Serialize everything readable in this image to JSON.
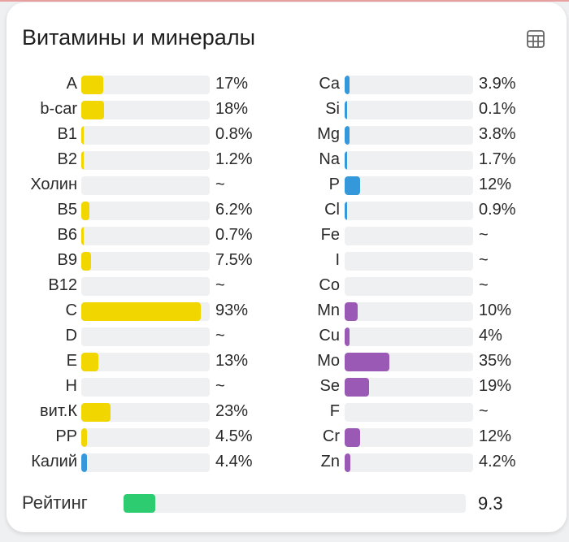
{
  "title": "Витамины и минералы",
  "icon": "table-icon",
  "colors": {
    "vitamin": "#f2d600",
    "mineral_blue": "#3498db",
    "mineral_purple": "#9b59b6",
    "rating": "#2ecc71",
    "track": "#eff0f2"
  },
  "left": [
    {
      "label": "A",
      "value": "17%",
      "pct": 17,
      "color": "#f2d600"
    },
    {
      "label": "b-car",
      "value": "18%",
      "pct": 18,
      "color": "#f2d600"
    },
    {
      "label": "B1",
      "value": "0.8%",
      "pct": 0.8,
      "color": "#f2d600"
    },
    {
      "label": "B2",
      "value": "1.2%",
      "pct": 1.2,
      "color": "#f2d600"
    },
    {
      "label": "Холин",
      "value": "~",
      "pct": 0,
      "color": "#f2d600"
    },
    {
      "label": "B5",
      "value": "6.2%",
      "pct": 6.2,
      "color": "#f2d600"
    },
    {
      "label": "B6",
      "value": "0.7%",
      "pct": 0.7,
      "color": "#f2d600"
    },
    {
      "label": "B9",
      "value": "7.5%",
      "pct": 7.5,
      "color": "#f2d600"
    },
    {
      "label": "B12",
      "value": "~",
      "pct": 0,
      "color": "#f2d600"
    },
    {
      "label": "C",
      "value": "93%",
      "pct": 93,
      "color": "#f2d600"
    },
    {
      "label": "D",
      "value": "~",
      "pct": 0,
      "color": "#f2d600"
    },
    {
      "label": "E",
      "value": "13%",
      "pct": 13,
      "color": "#f2d600"
    },
    {
      "label": "H",
      "value": "~",
      "pct": 0,
      "color": "#f2d600"
    },
    {
      "label": "вит.К",
      "value": "23%",
      "pct": 23,
      "color": "#f2d600"
    },
    {
      "label": "PP",
      "value": "4.5%",
      "pct": 4.5,
      "color": "#f2d600"
    },
    {
      "label": "Калий",
      "value": "4.4%",
      "pct": 4.4,
      "color": "#3498db"
    }
  ],
  "right": [
    {
      "label": "Ca",
      "value": "3.9%",
      "pct": 3.9,
      "color": "#3498db"
    },
    {
      "label": "Si",
      "value": "0.1%",
      "pct": 0.1,
      "color": "#3498db"
    },
    {
      "label": "Mg",
      "value": "3.8%",
      "pct": 3.8,
      "color": "#3498db"
    },
    {
      "label": "Na",
      "value": "1.7%",
      "pct": 1.7,
      "color": "#3498db"
    },
    {
      "label": "P",
      "value": "12%",
      "pct": 12,
      "color": "#3498db"
    },
    {
      "label": "Cl",
      "value": "0.9%",
      "pct": 0.9,
      "color": "#3498db"
    },
    {
      "label": "Fe",
      "value": "~",
      "pct": 0,
      "color": "#9b59b6"
    },
    {
      "label": "I",
      "value": "~",
      "pct": 0,
      "color": "#9b59b6"
    },
    {
      "label": "Co",
      "value": "~",
      "pct": 0,
      "color": "#9b59b6"
    },
    {
      "label": "Mn",
      "value": "10%",
      "pct": 10,
      "color": "#9b59b6"
    },
    {
      "label": "Cu",
      "value": "4%",
      "pct": 4,
      "color": "#9b59b6"
    },
    {
      "label": "Mo",
      "value": "35%",
      "pct": 35,
      "color": "#9b59b6"
    },
    {
      "label": "Se",
      "value": "19%",
      "pct": 19,
      "color": "#9b59b6"
    },
    {
      "label": "F",
      "value": "~",
      "pct": 0,
      "color": "#9b59b6"
    },
    {
      "label": "Cr",
      "value": "12%",
      "pct": 12,
      "color": "#9b59b6"
    },
    {
      "label": "Zn",
      "value": "4.2%",
      "pct": 4.2,
      "color": "#9b59b6"
    }
  ],
  "rating": {
    "label": "Рейтинг",
    "value": "9.3",
    "pct": 9.3
  }
}
